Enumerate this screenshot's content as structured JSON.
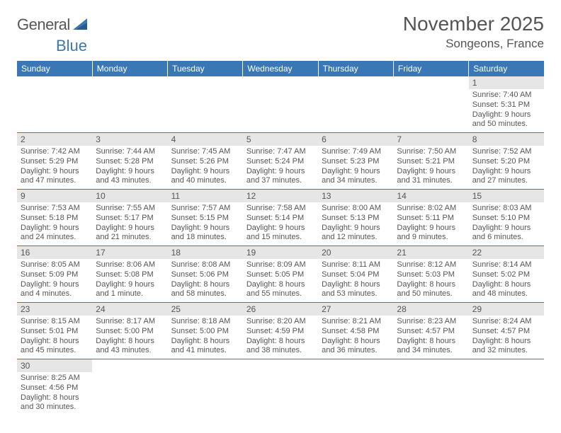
{
  "brand": {
    "part1": "General",
    "part2": "Blue"
  },
  "title": "November 2025",
  "location": "Songeons, France",
  "colors": {
    "header_bg": "#3a78b5",
    "header_text": "#ffffff",
    "daynum_bg": "#e6e6e6",
    "text": "#555555",
    "rule": "#3a78b5"
  },
  "weekdays": [
    "Sunday",
    "Monday",
    "Tuesday",
    "Wednesday",
    "Thursday",
    "Friday",
    "Saturday"
  ],
  "weeks": [
    [
      null,
      null,
      null,
      null,
      null,
      null,
      {
        "n": "1",
        "sunrise": "Sunrise: 7:40 AM",
        "sunset": "Sunset: 5:31 PM",
        "daylight": "Daylight: 9 hours and 50 minutes."
      }
    ],
    [
      {
        "n": "2",
        "sunrise": "Sunrise: 7:42 AM",
        "sunset": "Sunset: 5:29 PM",
        "daylight": "Daylight: 9 hours and 47 minutes."
      },
      {
        "n": "3",
        "sunrise": "Sunrise: 7:44 AM",
        "sunset": "Sunset: 5:28 PM",
        "daylight": "Daylight: 9 hours and 43 minutes."
      },
      {
        "n": "4",
        "sunrise": "Sunrise: 7:45 AM",
        "sunset": "Sunset: 5:26 PM",
        "daylight": "Daylight: 9 hours and 40 minutes."
      },
      {
        "n": "5",
        "sunrise": "Sunrise: 7:47 AM",
        "sunset": "Sunset: 5:24 PM",
        "daylight": "Daylight: 9 hours and 37 minutes."
      },
      {
        "n": "6",
        "sunrise": "Sunrise: 7:49 AM",
        "sunset": "Sunset: 5:23 PM",
        "daylight": "Daylight: 9 hours and 34 minutes."
      },
      {
        "n": "7",
        "sunrise": "Sunrise: 7:50 AM",
        "sunset": "Sunset: 5:21 PM",
        "daylight": "Daylight: 9 hours and 31 minutes."
      },
      {
        "n": "8",
        "sunrise": "Sunrise: 7:52 AM",
        "sunset": "Sunset: 5:20 PM",
        "daylight": "Daylight: 9 hours and 27 minutes."
      }
    ],
    [
      {
        "n": "9",
        "sunrise": "Sunrise: 7:53 AM",
        "sunset": "Sunset: 5:18 PM",
        "daylight": "Daylight: 9 hours and 24 minutes."
      },
      {
        "n": "10",
        "sunrise": "Sunrise: 7:55 AM",
        "sunset": "Sunset: 5:17 PM",
        "daylight": "Daylight: 9 hours and 21 minutes."
      },
      {
        "n": "11",
        "sunrise": "Sunrise: 7:57 AM",
        "sunset": "Sunset: 5:15 PM",
        "daylight": "Daylight: 9 hours and 18 minutes."
      },
      {
        "n": "12",
        "sunrise": "Sunrise: 7:58 AM",
        "sunset": "Sunset: 5:14 PM",
        "daylight": "Daylight: 9 hours and 15 minutes."
      },
      {
        "n": "13",
        "sunrise": "Sunrise: 8:00 AM",
        "sunset": "Sunset: 5:13 PM",
        "daylight": "Daylight: 9 hours and 12 minutes."
      },
      {
        "n": "14",
        "sunrise": "Sunrise: 8:02 AM",
        "sunset": "Sunset: 5:11 PM",
        "daylight": "Daylight: 9 hours and 9 minutes."
      },
      {
        "n": "15",
        "sunrise": "Sunrise: 8:03 AM",
        "sunset": "Sunset: 5:10 PM",
        "daylight": "Daylight: 9 hours and 6 minutes."
      }
    ],
    [
      {
        "n": "16",
        "sunrise": "Sunrise: 8:05 AM",
        "sunset": "Sunset: 5:09 PM",
        "daylight": "Daylight: 9 hours and 4 minutes."
      },
      {
        "n": "17",
        "sunrise": "Sunrise: 8:06 AM",
        "sunset": "Sunset: 5:08 PM",
        "daylight": "Daylight: 9 hours and 1 minute."
      },
      {
        "n": "18",
        "sunrise": "Sunrise: 8:08 AM",
        "sunset": "Sunset: 5:06 PM",
        "daylight": "Daylight: 8 hours and 58 minutes."
      },
      {
        "n": "19",
        "sunrise": "Sunrise: 8:09 AM",
        "sunset": "Sunset: 5:05 PM",
        "daylight": "Daylight: 8 hours and 55 minutes."
      },
      {
        "n": "20",
        "sunrise": "Sunrise: 8:11 AM",
        "sunset": "Sunset: 5:04 PM",
        "daylight": "Daylight: 8 hours and 53 minutes."
      },
      {
        "n": "21",
        "sunrise": "Sunrise: 8:12 AM",
        "sunset": "Sunset: 5:03 PM",
        "daylight": "Daylight: 8 hours and 50 minutes."
      },
      {
        "n": "22",
        "sunrise": "Sunrise: 8:14 AM",
        "sunset": "Sunset: 5:02 PM",
        "daylight": "Daylight: 8 hours and 48 minutes."
      }
    ],
    [
      {
        "n": "23",
        "sunrise": "Sunrise: 8:15 AM",
        "sunset": "Sunset: 5:01 PM",
        "daylight": "Daylight: 8 hours and 45 minutes."
      },
      {
        "n": "24",
        "sunrise": "Sunrise: 8:17 AM",
        "sunset": "Sunset: 5:00 PM",
        "daylight": "Daylight: 8 hours and 43 minutes."
      },
      {
        "n": "25",
        "sunrise": "Sunrise: 8:18 AM",
        "sunset": "Sunset: 5:00 PM",
        "daylight": "Daylight: 8 hours and 41 minutes."
      },
      {
        "n": "26",
        "sunrise": "Sunrise: 8:20 AM",
        "sunset": "Sunset: 4:59 PM",
        "daylight": "Daylight: 8 hours and 38 minutes."
      },
      {
        "n": "27",
        "sunrise": "Sunrise: 8:21 AM",
        "sunset": "Sunset: 4:58 PM",
        "daylight": "Daylight: 8 hours and 36 minutes."
      },
      {
        "n": "28",
        "sunrise": "Sunrise: 8:23 AM",
        "sunset": "Sunset: 4:57 PM",
        "daylight": "Daylight: 8 hours and 34 minutes."
      },
      {
        "n": "29",
        "sunrise": "Sunrise: 8:24 AM",
        "sunset": "Sunset: 4:57 PM",
        "daylight": "Daylight: 8 hours and 32 minutes."
      }
    ],
    [
      {
        "n": "30",
        "sunrise": "Sunrise: 8:25 AM",
        "sunset": "Sunset: 4:56 PM",
        "daylight": "Daylight: 8 hours and 30 minutes."
      },
      null,
      null,
      null,
      null,
      null,
      null
    ]
  ]
}
